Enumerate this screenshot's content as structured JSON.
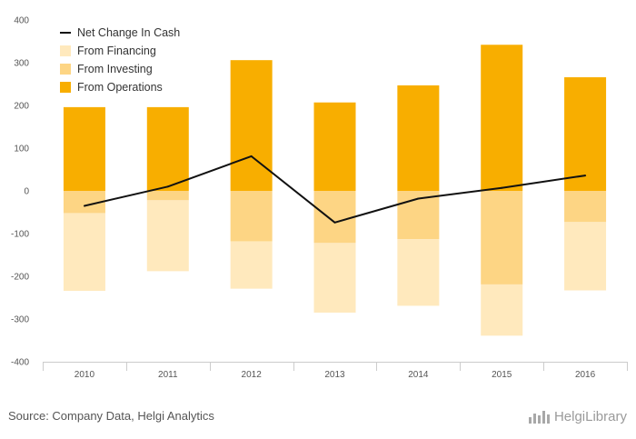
{
  "colors": {
    "financing": "#FFE9BD",
    "investing": "#FDD584",
    "operations": "#F8AE00",
    "net_change": "#111111",
    "axis": "#cccccc",
    "tick": "#555555"
  },
  "chart_data": {
    "type": "bar",
    "stacked": true,
    "title": "",
    "xlabel": "",
    "ylabel": "",
    "categories": [
      "2010",
      "2011",
      "2012",
      "2013",
      "2014",
      "2015",
      "2016"
    ],
    "ylim": [
      -400,
      400
    ],
    "yticks": [
      400,
      300,
      200,
      100,
      0,
      -100,
      -200,
      -300,
      -400
    ],
    "grid": false,
    "legend_position": "top-left",
    "series": [
      {
        "name": "From Operations",
        "type": "bar",
        "color_key": "operations",
        "values": [
          196,
          196,
          306,
          207,
          247,
          342,
          266
        ]
      },
      {
        "name": "From Investing",
        "type": "bar",
        "color_key": "investing",
        "values": [
          -52,
          -22,
          -118,
          -122,
          -113,
          -219,
          -73
        ]
      },
      {
        "name": "From Financing",
        "type": "bar",
        "color_key": "financing",
        "values": [
          -182,
          -166,
          -111,
          -163,
          -156,
          -120,
          -160
        ]
      },
      {
        "name": "Net Change In Cash",
        "type": "line",
        "color_key": "net_change",
        "values": [
          -35,
          10,
          81,
          -74,
          -18,
          7,
          36
        ]
      }
    ],
    "legend": [
      "Net Change In Cash",
      "From Financing",
      "From Investing",
      "From Operations"
    ]
  },
  "footer": {
    "source": "Source: Company Data, Helgi Analytics",
    "brand": "HelgiLibrary",
    "brand_icon": "bar-chart-icon"
  }
}
